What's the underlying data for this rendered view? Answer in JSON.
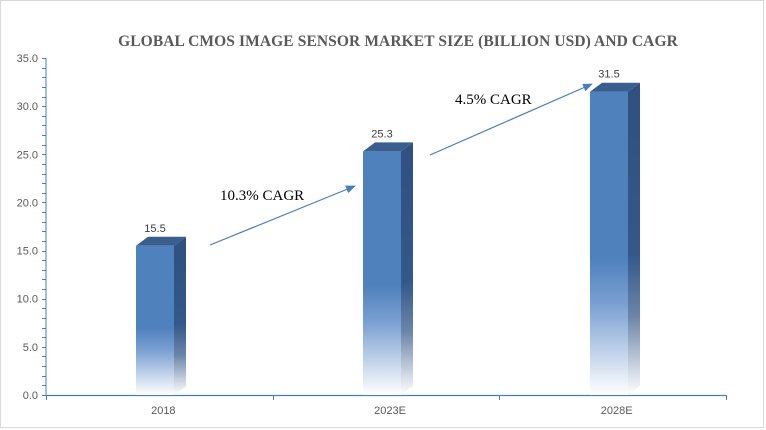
{
  "title": "GLOBAL CMOS IMAGE SENSOR MARKET SIZE (BILLION USD) AND CAGR",
  "colors": {
    "bar_front": "#4f81bd",
    "bar_top": "#3a5f8f",
    "bar_side": "#2f4f78",
    "axis": "#4a7ebb",
    "arrow": "#4a7ebb",
    "border": "#d9d9d9"
  },
  "chart_data": {
    "type": "bar",
    "title": "GLOBAL CMOS IMAGE SENSOR MARKET SIZE (BILLION USD) AND CAGR",
    "categories": [
      "2018",
      "2023E",
      "2028E"
    ],
    "values": [
      15.5,
      25.3,
      31.5
    ],
    "data_labels": [
      "15.5",
      "25.3",
      "31.5"
    ],
    "xlabel": "",
    "ylabel": "",
    "ylim": [
      0,
      35
    ],
    "yticks": [
      "0.0",
      "5.0",
      "10.0",
      "15.0",
      "20.0",
      "25.0",
      "30.0",
      "35.0"
    ],
    "grid": false,
    "legend": null,
    "style": "3d-column-gradient",
    "annotations": [
      {
        "text": "10.3% CAGR",
        "from": "2018",
        "to": "2023E",
        "type": "arrow"
      },
      {
        "text": "4.5% CAGR",
        "from": "2023E",
        "to": "2028E",
        "type": "arrow"
      }
    ]
  }
}
